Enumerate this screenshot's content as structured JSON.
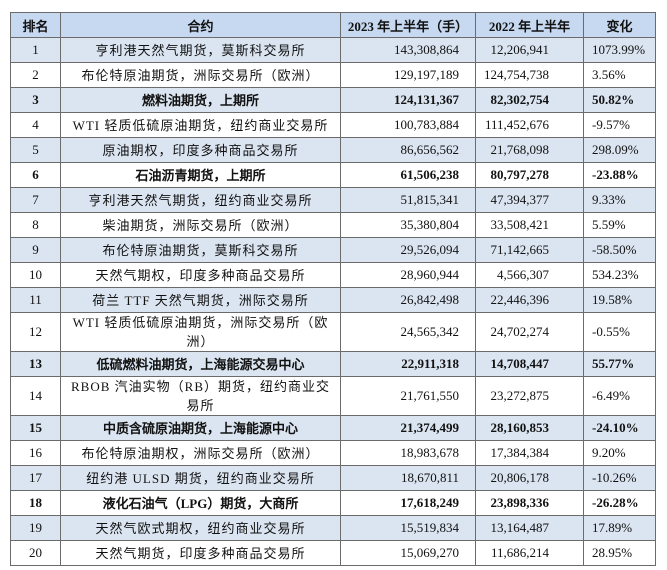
{
  "table": {
    "header": [
      "排名",
      "合约",
      "2023 年上半年（手）",
      "2022 年上半年",
      "变化"
    ],
    "rows": [
      {
        "cells": [
          "1",
          "亨利港天然气期货，莫斯科交易所",
          "143,308,864",
          "12,206,941",
          "1073.99%"
        ],
        "bold": false
      },
      {
        "cells": [
          "2",
          "布伦特原油期货，洲际交易所（欧洲）",
          "129,197,189",
          "124,754,738",
          "3.56%"
        ],
        "bold": false
      },
      {
        "cells": [
          "3",
          "燃料油期货，上期所",
          "124,131,367",
          "82,302,754",
          "50.82%"
        ],
        "bold": true
      },
      {
        "cells": [
          "4",
          "WTI 轻质低硫原油期货，纽约商业交易所",
          "100,783,884",
          "111,452,676",
          "-9.57%"
        ],
        "bold": false
      },
      {
        "cells": [
          "5",
          "原油期权，印度多种商品交易所",
          "86,656,562",
          "21,768,098",
          "298.09%"
        ],
        "bold": false
      },
      {
        "cells": [
          "6",
          "石油沥青期货，上期所",
          "61,506,238",
          "80,797,278",
          "-23.88%"
        ],
        "bold": true
      },
      {
        "cells": [
          "7",
          "亨利港天然气期货，纽约商业交易所",
          "51,815,341",
          "47,394,377",
          "9.33%"
        ],
        "bold": false
      },
      {
        "cells": [
          "8",
          "柴油期货，洲际交易所（欧洲）",
          "35,380,804",
          "33,508,421",
          "5.59%"
        ],
        "bold": false
      },
      {
        "cells": [
          "9",
          "布伦特原油期货，莫斯科交易所",
          "29,526,094",
          "71,142,665",
          "-58.50%"
        ],
        "bold": false
      },
      {
        "cells": [
          "10",
          "天然气期权，印度多种商品交易所",
          "28,960,944",
          "4,566,307",
          "534.23%"
        ],
        "bold": false
      },
      {
        "cells": [
          "11",
          "荷兰 TTF 天然气期货，洲际交易所",
          "26,842,498",
          "22,446,396",
          "19.58%"
        ],
        "bold": false
      },
      {
        "cells": [
          "12",
          "WTI 轻质低硫原油期货，洲际交易所（欧洲）",
          "24,565,342",
          "24,702,274",
          "-0.55%"
        ],
        "bold": false
      },
      {
        "cells": [
          "13",
          "低硫燃料油期货，上海能源交易中心",
          "22,911,318",
          "14,708,447",
          "55.77%"
        ],
        "bold": true
      },
      {
        "cells": [
          "14",
          "RBOB 汽油实物（RB）期货，纽约商业交易所",
          "21,761,550",
          "23,272,875",
          "-6.49%"
        ],
        "bold": false
      },
      {
        "cells": [
          "15",
          "中质含硫原油期货，上海能源中心",
          "21,374,499",
          "28,160,853",
          "-24.10%"
        ],
        "bold": true
      },
      {
        "cells": [
          "16",
          "布伦特原油期权，洲际交易所（欧洲）",
          "18,983,678",
          "17,384,384",
          "9.20%"
        ],
        "bold": false
      },
      {
        "cells": [
          "17",
          "纽约港 ULSD 期货，纽约商业交易所",
          "18,670,811",
          "20,806,178",
          "-10.26%"
        ],
        "bold": false
      },
      {
        "cells": [
          "18",
          "液化石油气（LPG）期货，大商所",
          "17,618,249",
          "23,898,336",
          "-26.28%"
        ],
        "bold": true
      },
      {
        "cells": [
          "19",
          "天然气欧式期权，纽约商业交易所",
          "15,519,834",
          "13,164,487",
          "17.89%"
        ],
        "bold": false
      },
      {
        "cells": [
          "20",
          "天然气期货，印度多种商品交易所",
          "15,069,270",
          "11,686,214",
          "28.95%"
        ],
        "bold": false
      }
    ]
  }
}
